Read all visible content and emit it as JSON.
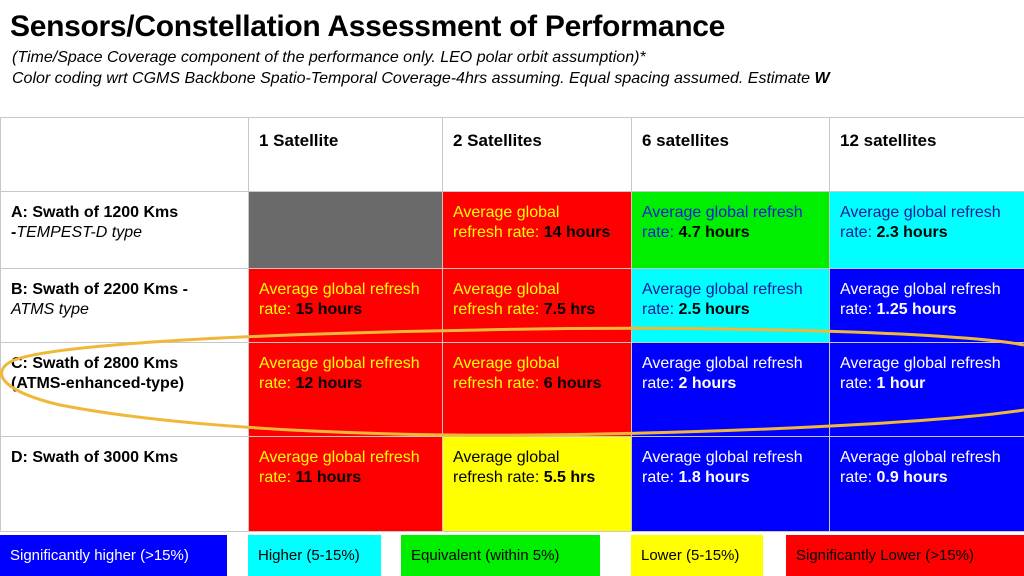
{
  "title": "Sensors/Constellation Assessment of Performance",
  "subtitle1": "(Time/Space Coverage component of the performance only. LEO polar orbit assumption)*",
  "subtitle2": "Color coding wrt CGMS Backbone Spatio-Temporal Coverage-4hrs assuming. Equal spacing assumed. Estimate ",
  "subtitle2_bold": "W",
  "columns": [
    "1 Satellite",
    "2 Satellites",
    "6 satellites",
    "12 satellites"
  ],
  "value_prefix_short": "Average global",
  "value_prefix_short2": "refresh rate: ",
  "value_prefix_long": "Average global refresh",
  "value_prefix_long2": "rate: ",
  "rows": [
    {
      "label_bold": "A: Swath of 1200 Kms",
      "label_line2_bold": "-",
      "label_line2_italic": "TEMPEST-D type",
      "cells": [
        "",
        "14 hours",
        "4.7 hours",
        "2.3  hours"
      ]
    },
    {
      "label_bold": "B: Swath of 2200 Kms -",
      "label_line2_italic": "ATMS type",
      "cells": [
        "15 hours",
        "7.5 hrs",
        "2.5 hours",
        "1.25 hours"
      ]
    },
    {
      "label_bold": "C: Swath of 2800 Kms",
      "label_line2_bold": "(ATMS-enhanced-type)",
      "cells": [
        "12 hours",
        "6 hours",
        "2 hours",
        "1 hour"
      ]
    },
    {
      "label_bold": "D: Swath of 3000 Kms",
      "cells": [
        "11 hours",
        "5.5 hrs",
        "1.8 hours",
        "0.9 hours"
      ]
    }
  ],
  "legend": [
    "Significantly higher (>15%)",
    "Higher (5-15%)",
    "Equivalent (within 5%)",
    "Lower (5-15%)",
    "Significantly Lower (>15%)"
  ],
  "colors": {
    "significantly_higher": "#0000ff",
    "higher": "#00ffff",
    "equivalent": "#00ee00",
    "lower": "#ffff00",
    "significantly_lower": "#ff0000",
    "not_applicable": "#6a6a6a",
    "highlight_ellipse": "#f0b83a"
  }
}
